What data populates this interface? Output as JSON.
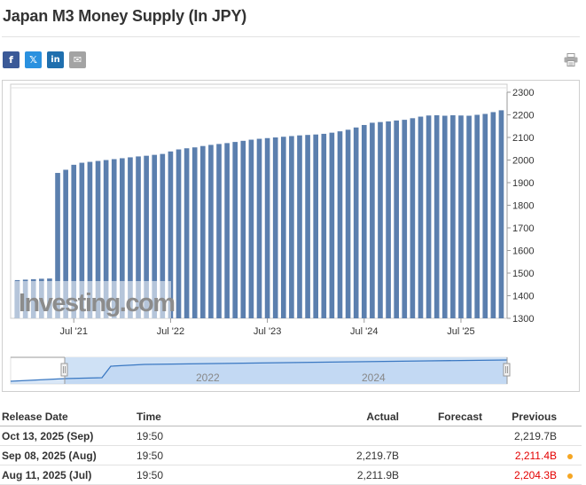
{
  "page": {
    "title": "Japan M3 Money Supply (In JPY)"
  },
  "share": {
    "facebook": "f",
    "twitter": "𝕏",
    "linkedin": "in",
    "email": "✉"
  },
  "icons": {
    "print": "printer-icon"
  },
  "colors": {
    "bar": "#5b7fae",
    "navigator_fill": "#cfe1f5",
    "navigator_line": "#3a78c2",
    "down": "#e40000",
    "dot": "#f5a623"
  },
  "chart_data": {
    "type": "bar",
    "title": "",
    "xlabel": "",
    "ylabel": "",
    "ylim": [
      1300,
      2300
    ],
    "y_ticks": [
      1300,
      1400,
      1500,
      1600,
      1700,
      1800,
      1900,
      2000,
      2100,
      2200,
      2300
    ],
    "x_tick_labels": [
      "Jul '21",
      "Jul '22",
      "Jul '23",
      "Jul '24",
      "Jul '25"
    ],
    "x_tick_bar_index": [
      7,
      19,
      31,
      43,
      55
    ],
    "values": [
      1469,
      1471,
      1473,
      1475,
      1476,
      1943,
      1957,
      1979,
      1988,
      1992,
      1996,
      2000,
      2004,
      2008,
      2012,
      2016,
      2019,
      2023,
      2027,
      2038,
      2047,
      2052,
      2056,
      2062,
      2067,
      2071,
      2075,
      2080,
      2085,
      2090,
      2094,
      2097,
      2100,
      2103,
      2106,
      2109,
      2111,
      2113,
      2116,
      2121,
      2127,
      2134,
      2144,
      2155,
      2165,
      2168,
      2171,
      2175,
      2178,
      2185,
      2192,
      2197,
      2198,
      2196,
      2198,
      2197,
      2196,
      2200,
      2204,
      2212,
      2220
    ],
    "grid": false,
    "watermark": "Investing.com",
    "navigator": {
      "labels": [
        "2022",
        "2024"
      ]
    }
  },
  "table": {
    "headers": {
      "date": "Release Date",
      "time": "Time",
      "actual": "Actual",
      "forecast": "Forecast",
      "previous": "Previous"
    },
    "rows": [
      {
        "date": "Oct 13, 2025 (Sep)",
        "time": "19:50",
        "actual": "",
        "forecast": "",
        "previous": "2,219.7B",
        "previous_down": false,
        "dot": false
      },
      {
        "date": "Sep 08, 2025 (Aug)",
        "time": "19:50",
        "actual": "2,219.7B",
        "forecast": "",
        "previous": "2,211.4B",
        "previous_down": true,
        "dot": true
      },
      {
        "date": "Aug 11, 2025 (Jul)",
        "time": "19:50",
        "actual": "2,211.9B",
        "forecast": "",
        "previous": "2,204.3B",
        "previous_down": true,
        "dot": true
      }
    ]
  }
}
